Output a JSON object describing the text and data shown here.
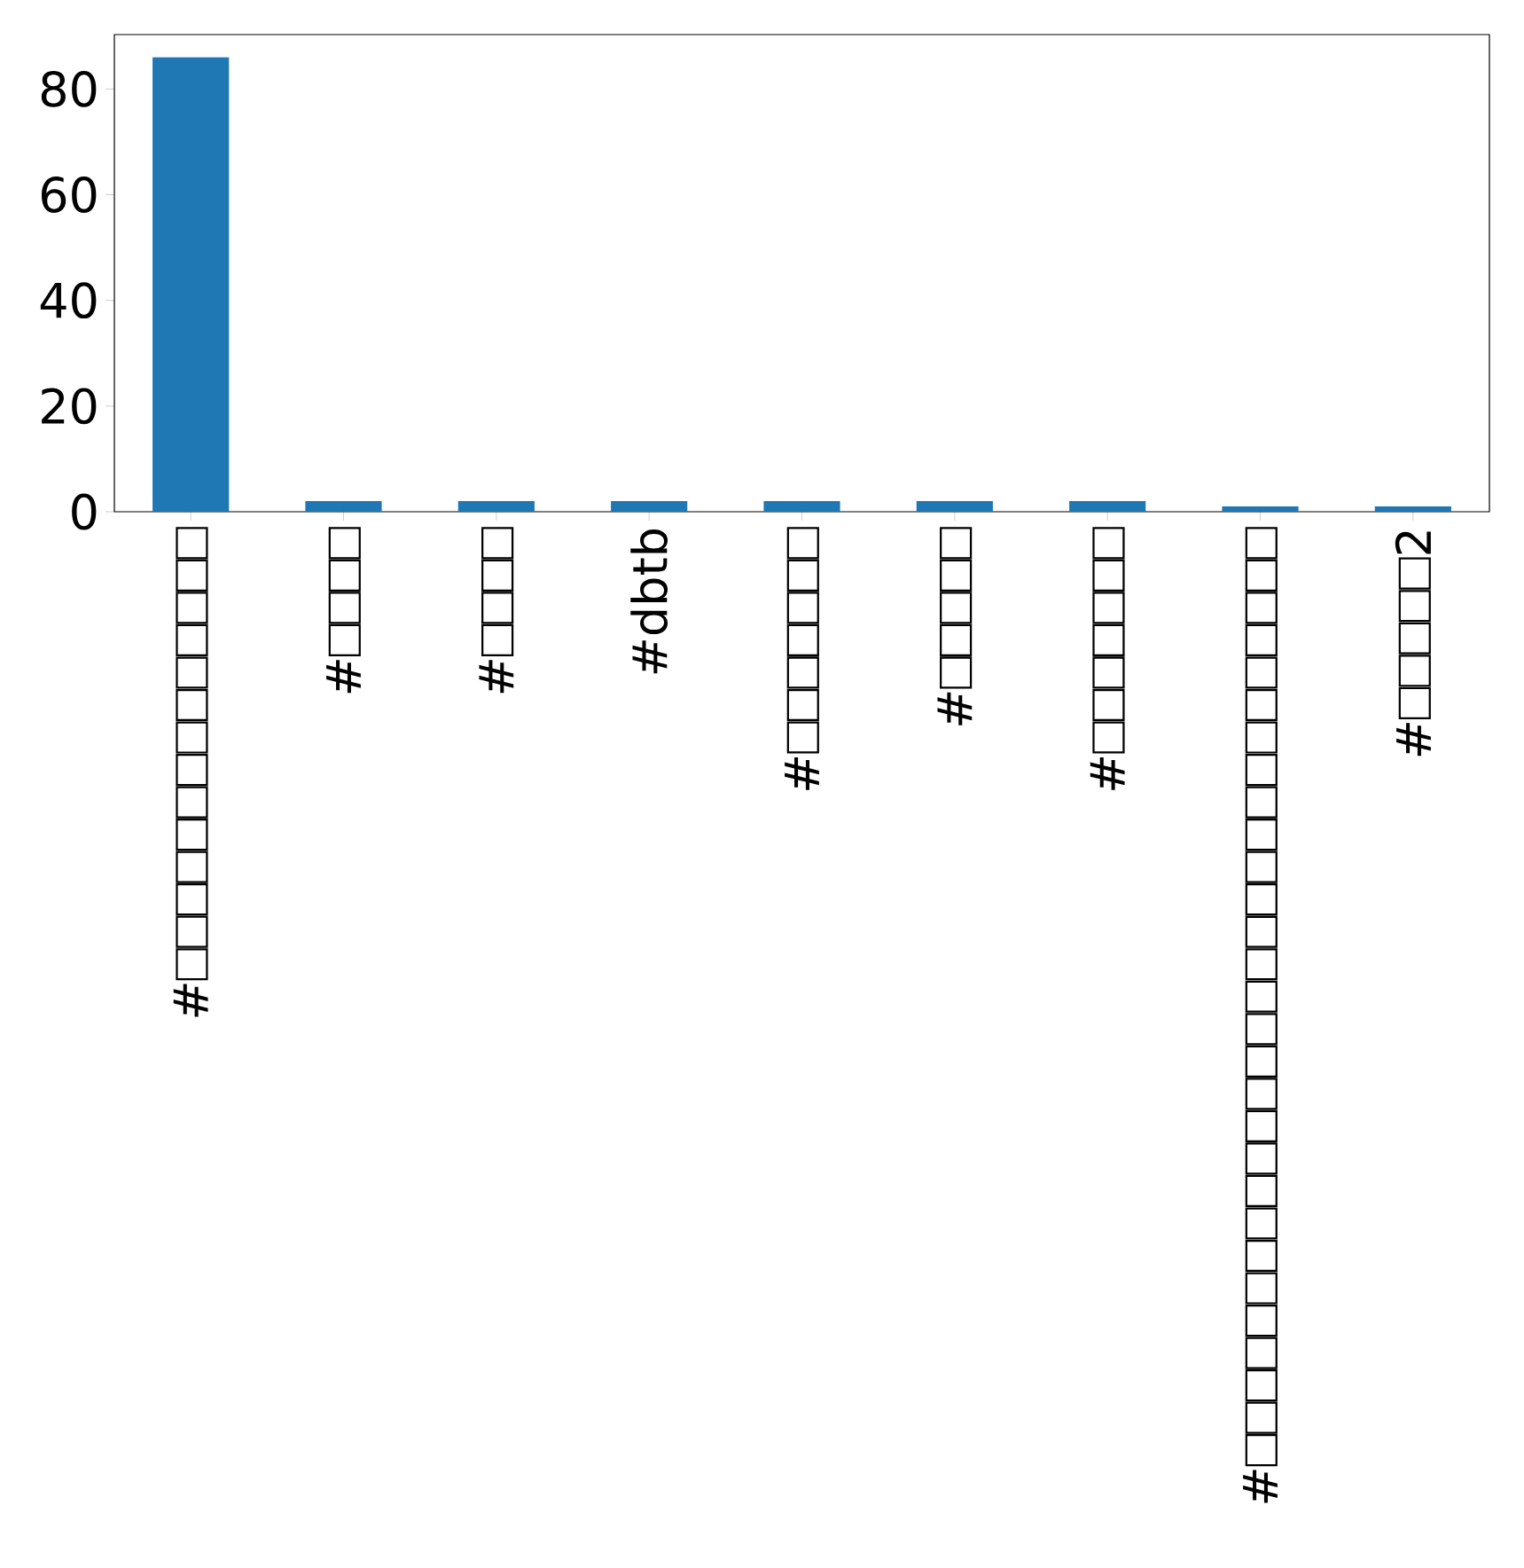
{
  "chart_data": {
    "type": "bar",
    "categories": [
      "#□□□□□□□□□□□□□□",
      "#□□□□",
      "#□□□□",
      "#dbtb",
      "#□□□□□□□",
      "#□□□□□",
      "#□□□□□□□",
      "#□□□□□□□□□□□□□□□□□□□□□□□□□□□□□",
      "#□□□□□2"
    ],
    "values": [
      86,
      2,
      2,
      2,
      2,
      2,
      2,
      1,
      1
    ],
    "color": "#1f77b4",
    "ylim": [
      0,
      90.3
    ],
    "yticks": [
      0,
      20,
      40,
      60,
      80
    ]
  }
}
